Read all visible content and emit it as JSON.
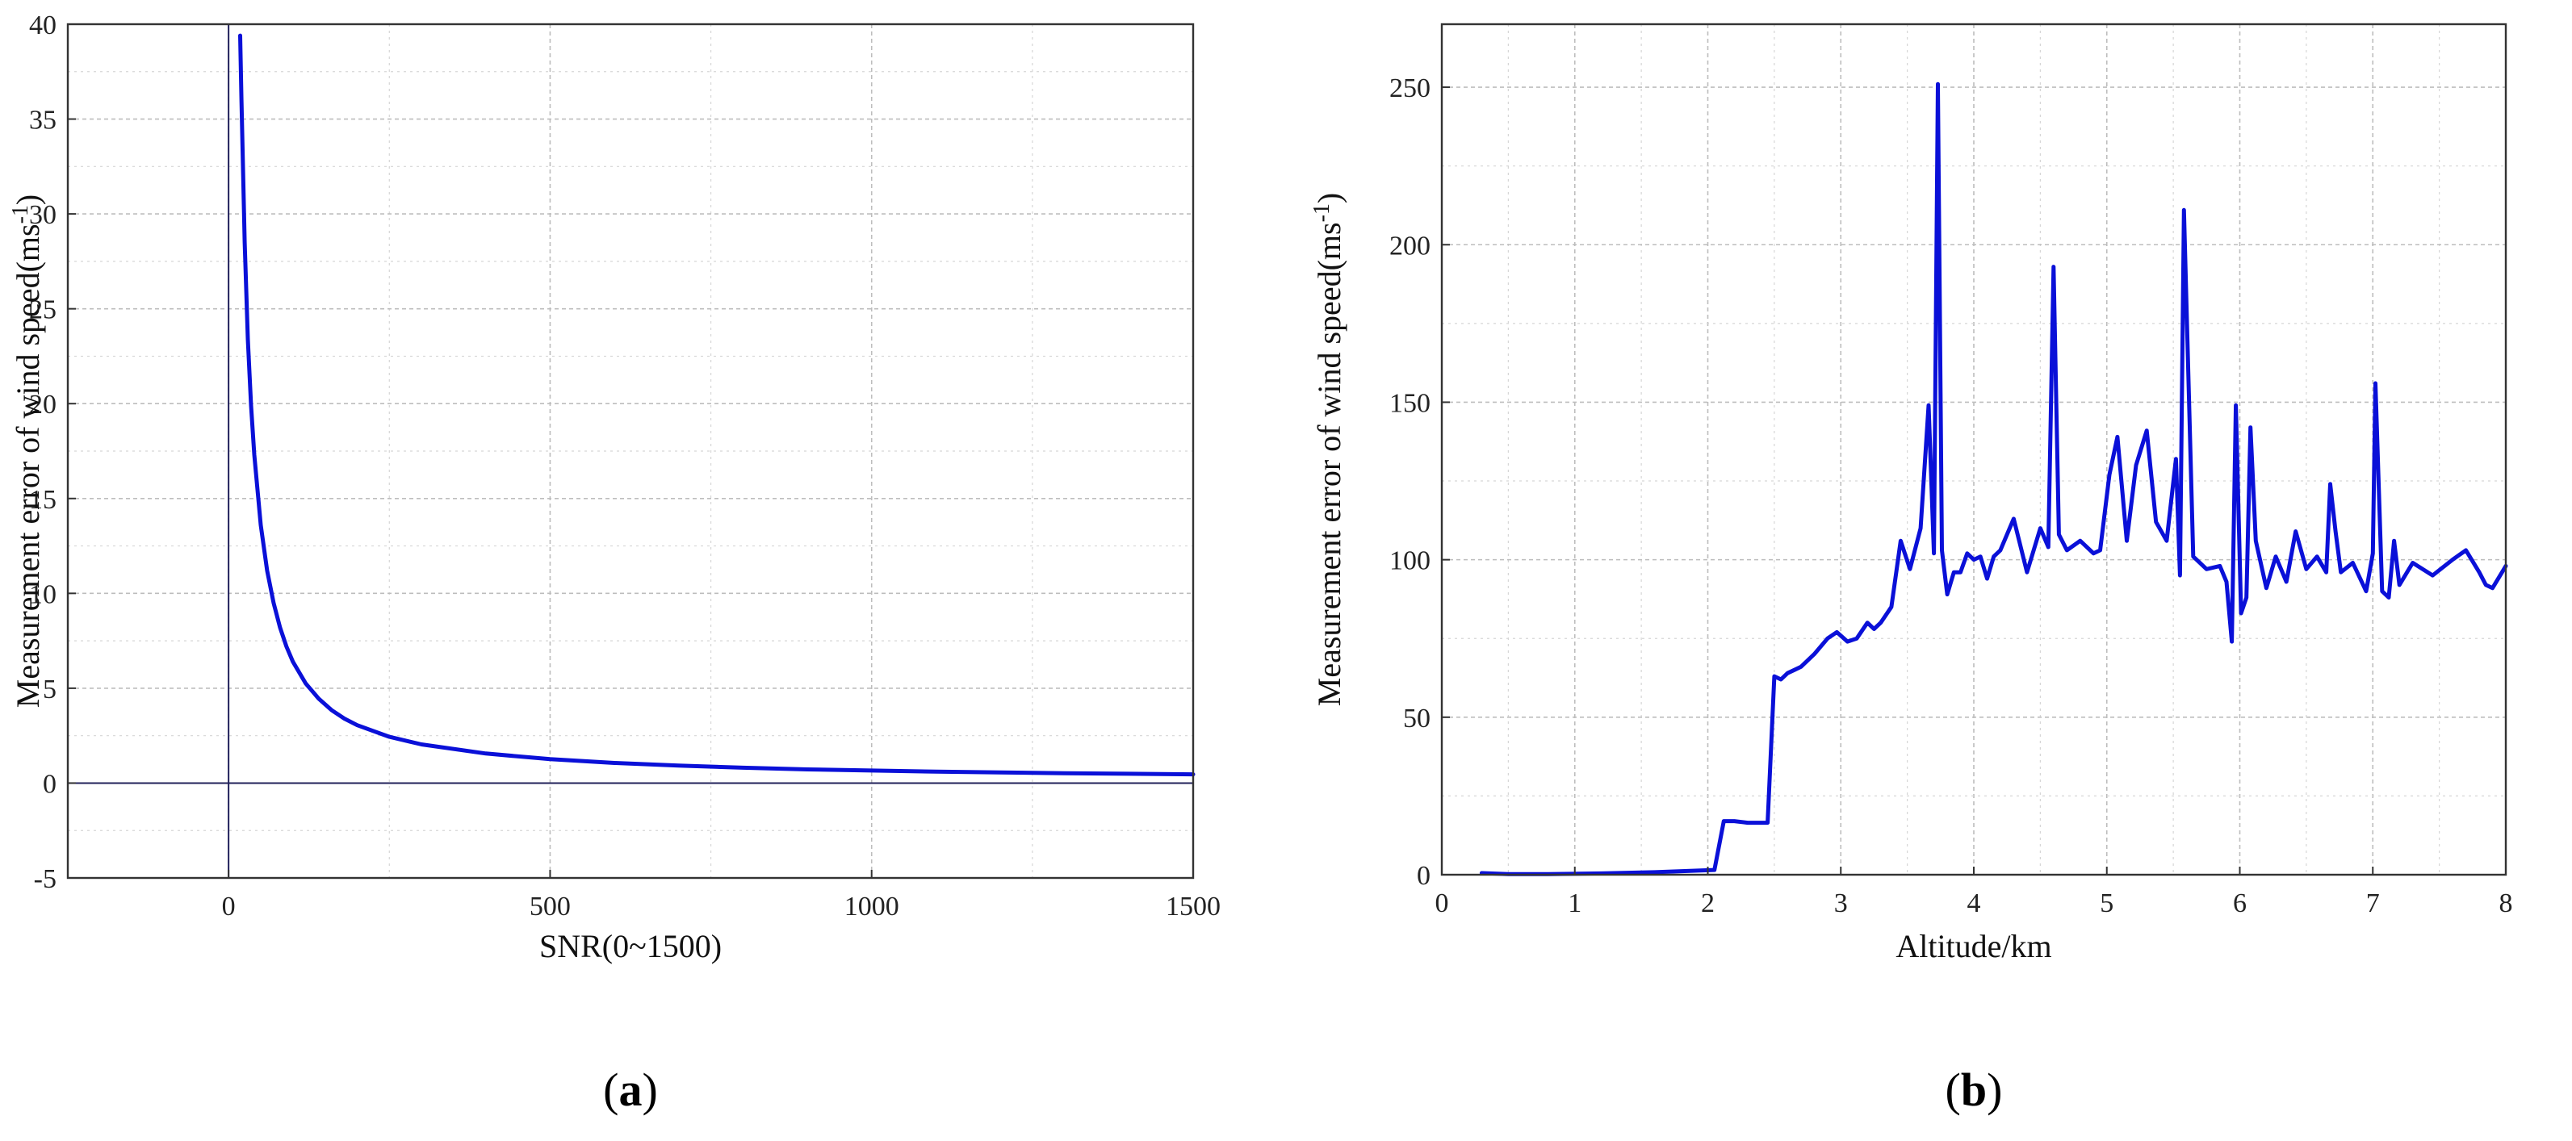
{
  "chart_data": [
    {
      "type": "line",
      "panel": "(a)",
      "panel_letter": "a",
      "xlabel": "SNR(0~1500)",
      "ylabel": "Measurement error of wind speed(ms-1)",
      "xlim": [
        -250,
        1500
      ],
      "ylim": [
        -5,
        40
      ],
      "xticks": [
        0,
        500,
        1000,
        1500
      ],
      "yticks": [
        -5,
        0,
        5,
        10,
        15,
        20,
        25,
        30,
        35,
        40
      ],
      "grid": true,
      "reference_lines": {
        "x": 0,
        "y": 0
      },
      "line_color": "#0a10d8",
      "series": [
        {
          "x": [
            18,
            20,
            25,
            30,
            35,
            40,
            50,
            60,
            70,
            80,
            90,
            100,
            120,
            140,
            160,
            180,
            200,
            250,
            300,
            400,
            500,
            600,
            700,
            800,
            900,
            1000,
            1100,
            1200,
            1300,
            1400,
            1500
          ],
          "y": [
            39.4,
            36.0,
            28.5,
            23.4,
            19.9,
            17.3,
            13.6,
            11.2,
            9.5,
            8.2,
            7.2,
            6.4,
            5.25,
            4.45,
            3.85,
            3.4,
            3.05,
            2.44,
            2.04,
            1.56,
            1.26,
            1.06,
            0.92,
            0.81,
            0.72,
            0.66,
            0.6,
            0.56,
            0.52,
            0.49,
            0.46
          ]
        }
      ]
    },
    {
      "type": "line",
      "panel": "(b)",
      "panel_letter": "b",
      "xlabel": "Altitude/km",
      "ylabel": "Measurement error of wind speed(ms-1)",
      "xlim": [
        0,
        8
      ],
      "ylim": [
        0,
        270
      ],
      "xticks": [
        0,
        1,
        2,
        3,
        4,
        5,
        6,
        7,
        8
      ],
      "yticks": [
        0,
        50,
        100,
        150,
        200,
        250
      ],
      "grid": true,
      "line_color": "#0a10d8",
      "series": [
        {
          "x": [
            0.3,
            0.5,
            0.8,
            1.2,
            1.6,
            2.05,
            2.12,
            2.2,
            2.3,
            2.45,
            2.5,
            2.55,
            2.6,
            2.65,
            2.7,
            2.8,
            2.9,
            2.97,
            3.05,
            3.12,
            3.2,
            3.25,
            3.3,
            3.38,
            3.45,
            3.52,
            3.6,
            3.66,
            3.7,
            3.73,
            3.76,
            3.8,
            3.85,
            3.9,
            3.95,
            4.0,
            4.05,
            4.1,
            4.15,
            4.2,
            4.3,
            4.4,
            4.5,
            4.56,
            4.6,
            4.64,
            4.7,
            4.8,
            4.9,
            4.95,
            5.02,
            5.08,
            5.15,
            5.22,
            5.3,
            5.37,
            5.45,
            5.52,
            5.55,
            5.58,
            5.65,
            5.75,
            5.85,
            5.9,
            5.94,
            5.97,
            6.01,
            6.05,
            6.08,
            6.12,
            6.2,
            6.27,
            6.35,
            6.42,
            6.5,
            6.58,
            6.65,
            6.68,
            6.72,
            6.76,
            6.85,
            6.95,
            7.0,
            7.02,
            7.07,
            7.12,
            7.16,
            7.2,
            7.3,
            7.45,
            7.6,
            7.7,
            7.8,
            7.85,
            7.9,
            8.0
          ],
          "y": [
            0.5,
            0.2,
            0.2,
            0.4,
            0.8,
            1.5,
            17,
            17,
            16.5,
            16.5,
            63,
            62,
            64,
            65,
            66,
            70,
            75,
            77,
            74,
            75,
            80,
            78,
            80,
            85,
            106,
            97,
            110,
            149,
            102,
            251,
            103,
            89,
            96,
            96,
            102,
            100,
            101,
            94,
            101,
            103,
            113,
            96,
            110,
            104,
            193,
            108,
            103,
            106,
            102,
            103,
            127,
            139,
            106,
            130,
            141,
            112,
            106,
            132,
            95,
            211,
            101,
            97,
            98,
            93,
            74,
            149,
            83,
            88,
            142,
            106,
            91,
            101,
            93,
            109,
            97,
            101,
            96,
            124,
            109,
            96,
            99,
            90,
            102,
            156,
            90,
            88,
            106,
            92,
            99,
            95,
            100,
            103,
            96,
            92,
            91,
            98
          ]
        }
      ]
    }
  ]
}
